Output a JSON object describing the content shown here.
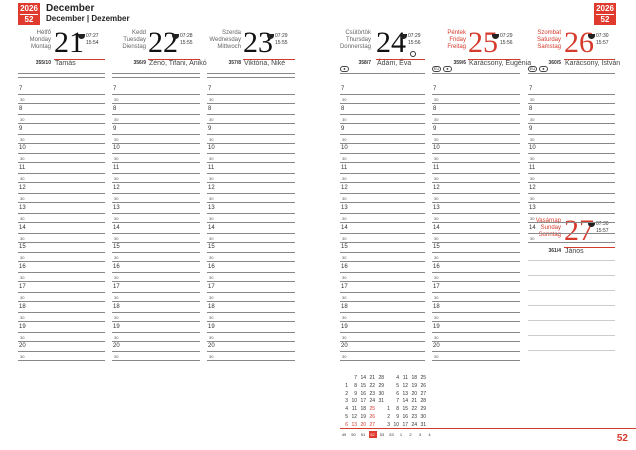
{
  "header": {
    "year": "2026",
    "week": "52",
    "month": "December",
    "month_sub": "December | Dezember"
  },
  "colors": {
    "accent": "#e03a2f"
  },
  "days": [
    {
      "names": [
        "Hétfő",
        "Monday",
        "Montag"
      ],
      "num": "21",
      "sunrise": "07:27",
      "sunset": "15:54",
      "doy": "355/10",
      "nameday": "Tamás",
      "red": false
    },
    {
      "names": [
        "Kedd",
        "Tuesday",
        "Dienstag"
      ],
      "num": "22",
      "sunrise": "07:28",
      "sunset": "15:55",
      "doy": "356/9",
      "nameday": "Zénó, Tifani, Anikó",
      "red": false
    },
    {
      "names": [
        "Szerda",
        "Wednesday",
        "Mittwoch"
      ],
      "num": "23",
      "sunrise": "07:29",
      "sunset": "15:55",
      "doy": "357/8",
      "nameday": "Viktória, Niké",
      "red": false
    },
    {
      "names": [
        "Csütörtök",
        "Thursday",
        "Donnerstag"
      ],
      "num": "24",
      "sunrise": "07:29",
      "sunset": "15:56",
      "doy": "358/7",
      "nameday": "Ádám, Éva",
      "red": false,
      "moon": "full-moon-icon"
    },
    {
      "names": [
        "Péntek",
        "Friday",
        "Freitag"
      ],
      "num": "25",
      "sunrise": "07:29",
      "sunset": "15:56",
      "doy": "359/6",
      "nameday": "Karácsony, Eugénia",
      "red": true
    },
    {
      "names": [
        "Szombat",
        "Saturday",
        "Samstag"
      ],
      "num": "26",
      "sunrise": "07:30",
      "sunset": "15:57",
      "doy": "360/5",
      "nameday": "Karácsony, István",
      "red": true
    },
    {
      "names": [
        "Vasárnap",
        "Sunday",
        "Sonntag"
      ],
      "num": "27",
      "sunrise": "07:30",
      "sunset": "15:57",
      "doy": "361/4",
      "nameday": "János",
      "red": true
    }
  ],
  "hours": [
    "7",
    "8",
    "9",
    "10",
    "11",
    "12",
    "13",
    "14",
    "15",
    "16",
    "17",
    "18",
    "19",
    "20"
  ],
  "half_label": "30",
  "pills": {
    "hu": "EU",
    "dot": "●"
  },
  "mini_calendar": {
    "december": [
      [
        "",
        "7",
        "14",
        "21",
        "28"
      ],
      [
        "1",
        "8",
        "15",
        "22",
        "29"
      ],
      [
        "2",
        "9",
        "16",
        "23",
        "30"
      ],
      [
        "3",
        "10",
        "17",
        "24",
        "31"
      ],
      [
        "4",
        "11",
        "18",
        "25",
        ""
      ],
      [
        "5",
        "12",
        "19",
        "26",
        ""
      ],
      [
        "6",
        "13",
        "20",
        "27",
        ""
      ]
    ],
    "january": [
      [
        "",
        "4",
        "11",
        "18",
        "25"
      ],
      [
        "",
        "5",
        "12",
        "19",
        "26"
      ],
      [
        "",
        "6",
        "13",
        "20",
        "27"
      ],
      [
        "",
        "7",
        "14",
        "21",
        "28"
      ],
      [
        "1",
        "8",
        "15",
        "22",
        "29"
      ],
      [
        "2",
        "9",
        "16",
        "23",
        "30"
      ],
      [
        "3",
        "10",
        "17",
        "24",
        "31"
      ]
    ],
    "red_dates_december": [
      "25",
      "26",
      "20",
      "27",
      "13",
      "6"
    ],
    "weeks": [
      "49",
      "50",
      "51",
      "52",
      "53",
      "53",
      "1",
      "2",
      "3",
      "4"
    ],
    "current_week": "52"
  },
  "page_number": "52"
}
